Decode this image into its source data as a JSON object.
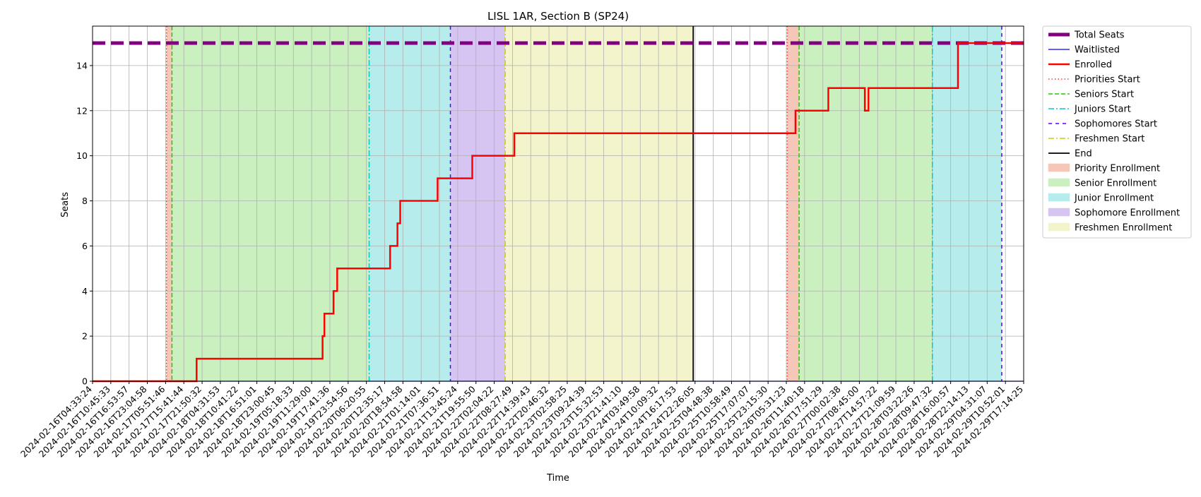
{
  "chart_data": {
    "type": "line",
    "title": "LISL 1AR, Section B (SP24)",
    "xlabel": "Time",
    "ylabel": "Seats",
    "xlim": [
      "2024-02-16T04:33:24",
      "2024-02-29T17:14:25"
    ],
    "ylim": [
      0,
      15.75
    ],
    "y_ticks": [
      0,
      2,
      4,
      6,
      8,
      10,
      12,
      14
    ],
    "x_tick_labels": [
      "2024-02-16T04:33:24",
      "2024-02-16T10:45:33",
      "2024-02-16T16:53:57",
      "2024-02-16T23:04:58",
      "2024-02-17T05:51:46",
      "2024-02-17T15:41:44",
      "2024-02-17T21:50:32",
      "2024-02-18T04:31:53",
      "2024-02-18T10:41:22",
      "2024-02-18T16:51:01",
      "2024-02-18T23:00:45",
      "2024-02-19T05:18:33",
      "2024-02-19T11:29:00",
      "2024-02-19T17:41:36",
      "2024-02-19T23:54:56",
      "2024-02-20T06:20:55",
      "2024-02-20T12:35:17",
      "2024-02-20T18:54:58",
      "2024-02-21T01:14:01",
      "2024-02-21T07:36:51",
      "2024-02-21T13:45:24",
      "2024-02-21T19:55:50",
      "2024-02-22T02:04:22",
      "2024-02-22T08:27:49",
      "2024-02-22T14:39:43",
      "2024-02-22T20:46:32",
      "2024-02-23T02:58:25",
      "2024-02-23T09:24:39",
      "2024-02-23T15:32:53",
      "2024-02-23T21:41:10",
      "2024-02-24T03:49:58",
      "2024-02-24T10:09:32",
      "2024-02-24T16:17:53",
      "2024-02-24T22:26:05",
      "2024-02-25T04:48:38",
      "2024-02-25T10:58:49",
      "2024-02-25T17:07:07",
      "2024-02-25T23:15:30",
      "2024-02-26T05:31:23",
      "2024-02-26T11:40:18",
      "2024-02-26T17:51:29",
      "2024-02-27T00:02:38",
      "2024-02-27T08:45:00",
      "2024-02-27T14:57:22",
      "2024-02-27T21:09:59",
      "2024-02-28T03:22:26",
      "2024-02-28T09:47:32",
      "2024-02-28T16:00:57",
      "2024-02-28T22:14:13",
      "2024-02-29T04:31:07",
      "2024-02-29T10:52:01",
      "2024-02-29T17:14:25"
    ],
    "grid": true,
    "legend_position": "outside top-right",
    "x_scale": "categorical (index = tick position)",
    "total_seats": 15,
    "waitlisted_value": 0,
    "enrolled_steps": [
      {
        "x": 0,
        "y": 0
      },
      {
        "x": 5.7,
        "y": 0
      },
      {
        "x": 5.7,
        "y": 1
      },
      {
        "x": 12.6,
        "y": 1
      },
      {
        "x": 12.6,
        "y": 2
      },
      {
        "x": 12.7,
        "y": 2
      },
      {
        "x": 12.7,
        "y": 3
      },
      {
        "x": 13.2,
        "y": 3
      },
      {
        "x": 13.2,
        "y": 4
      },
      {
        "x": 13.4,
        "y": 4
      },
      {
        "x": 13.4,
        "y": 5
      },
      {
        "x": 16.3,
        "y": 5
      },
      {
        "x": 16.3,
        "y": 6
      },
      {
        "x": 16.7,
        "y": 6
      },
      {
        "x": 16.7,
        "y": 7
      },
      {
        "x": 16.85,
        "y": 7
      },
      {
        "x": 16.85,
        "y": 8
      },
      {
        "x": 18.9,
        "y": 8
      },
      {
        "x": 18.9,
        "y": 9
      },
      {
        "x": 20.8,
        "y": 9
      },
      {
        "x": 20.8,
        "y": 10
      },
      {
        "x": 23.1,
        "y": 10
      },
      {
        "x": 23.1,
        "y": 11
      },
      {
        "x": 38.5,
        "y": 11
      },
      {
        "x": 38.5,
        "y": 12
      },
      {
        "x": 40.3,
        "y": 12
      },
      {
        "x": 40.3,
        "y": 13
      },
      {
        "x": 42.3,
        "y": 13
      },
      {
        "x": 42.3,
        "y": 12
      },
      {
        "x": 42.5,
        "y": 12
      },
      {
        "x": 42.5,
        "y": 13
      },
      {
        "x": 47.4,
        "y": 13
      },
      {
        "x": 47.4,
        "y": 15
      },
      {
        "x": 51,
        "y": 15
      }
    ],
    "vlines": [
      {
        "name": "Priorities Start",
        "x": 4.05,
        "color": "#ff3b30",
        "dash": "1.5,3"
      },
      {
        "name": "Seniors Start",
        "x": 4.35,
        "color": "#22cc00",
        "dash": "6,3"
      },
      {
        "name": "Juniors Start",
        "x": 15.15,
        "color": "#00cccc",
        "dash": "8,3,2,3"
      },
      {
        "name": "Sophomores Start",
        "x": 19.6,
        "color": "#5b00ff",
        "dash": "5,5"
      },
      {
        "name": "Freshmen Start",
        "x": 22.6,
        "color": "#cccc00",
        "dash": "8,3,2,3"
      },
      {
        "name": "End",
        "x": 32.9,
        "color": "#000000",
        "dash": ""
      },
      {
        "name": "Priorities Start",
        "x": 38.05,
        "color": "#ff3b30",
        "dash": "1.5,3"
      },
      {
        "name": "Seniors Start",
        "x": 38.7,
        "color": "#22cc00",
        "dash": "6,3"
      },
      {
        "name": "Juniors Start",
        "x": 46.0,
        "color": "#00cccc",
        "dash": "8,3,2,3"
      },
      {
        "name": "Sophomores Start",
        "x": 49.8,
        "color": "#5b00ff",
        "dash": "5,5"
      }
    ],
    "spans": [
      {
        "name": "Priority Enrollment",
        "from": 4.05,
        "to": 4.35,
        "color": "#f4c7b8"
      },
      {
        "name": "Senior Enrollment",
        "from": 4.35,
        "to": 15.15,
        "color": "#c9f0be"
      },
      {
        "name": "Junior Enrollment",
        "from": 15.15,
        "to": 19.6,
        "color": "#b6ecec"
      },
      {
        "name": "Sophomore Enrollment",
        "from": 19.6,
        "to": 22.6,
        "color": "#d6c5f2"
      },
      {
        "name": "Freshmen Enrollment",
        "from": 22.6,
        "to": 32.9,
        "color": "#f3f4cc"
      },
      {
        "name": "Priority Enrollment",
        "from": 38.05,
        "to": 38.7,
        "color": "#f4c7b8"
      },
      {
        "name": "Senior Enrollment",
        "from": 38.7,
        "to": 46.0,
        "color": "#c9f0be"
      },
      {
        "name": "Junior Enrollment",
        "from": 46.0,
        "to": 49.8,
        "color": "#b6ecec"
      }
    ],
    "legend": [
      {
        "label": "Total Seats",
        "kind": "line",
        "color": "#800080",
        "dash": "",
        "width": 5
      },
      {
        "label": "Waitlisted",
        "kind": "line",
        "color": "#0000ff",
        "dash": "",
        "width": 1.2
      },
      {
        "label": "Enrolled",
        "kind": "line",
        "color": "#ff0000",
        "dash": "",
        "width": 2.5
      },
      {
        "label": "Priorities Start",
        "kind": "line",
        "color": "#ff3b30",
        "dash": "1.5,3",
        "width": 1.5
      },
      {
        "label": "Seniors Start",
        "kind": "line",
        "color": "#22cc00",
        "dash": "6,3",
        "width": 1.5
      },
      {
        "label": "Juniors Start",
        "kind": "line",
        "color": "#00cccc",
        "dash": "8,3,2,3",
        "width": 1.5
      },
      {
        "label": "Sophomores Start",
        "kind": "line",
        "color": "#5b00ff",
        "dash": "5,5",
        "width": 1.5
      },
      {
        "label": "Freshmen Start",
        "kind": "line",
        "color": "#cccc00",
        "dash": "8,3,2,3",
        "width": 1.5
      },
      {
        "label": "End",
        "kind": "line",
        "color": "#000000",
        "dash": "",
        "width": 1.8
      },
      {
        "label": "Priority Enrollment",
        "kind": "patch",
        "color": "#f4c7b8"
      },
      {
        "label": "Senior Enrollment",
        "kind": "patch",
        "color": "#c9f0be"
      },
      {
        "label": "Junior Enrollment",
        "kind": "patch",
        "color": "#b6ecec"
      },
      {
        "label": "Sophomore Enrollment",
        "kind": "patch",
        "color": "#d6c5f2"
      },
      {
        "label": "Freshmen Enrollment",
        "kind": "patch",
        "color": "#f3f4cc"
      }
    ]
  }
}
